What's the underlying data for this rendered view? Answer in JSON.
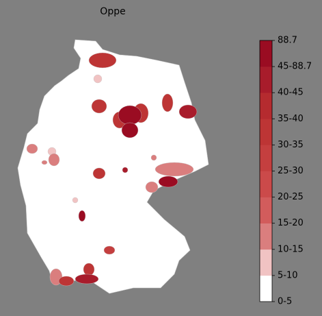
{
  "title": "Oppe",
  "colorbar": {
    "ticks": [
      "0-5",
      "5-10",
      "10-15",
      "15-20",
      "20-25",
      "25-30",
      "30-35",
      "35-40",
      "40-45",
      "45-88.7",
      "88.7"
    ],
    "colors": [
      "#ffffff",
      "#f1c3c3",
      "#da7e7e",
      "#d25c5c",
      "#cb4a4a",
      "#c43f3f",
      "#bd3535",
      "#b52b2f",
      "#a81c2b",
      "#9a0c22"
    ]
  }
}
